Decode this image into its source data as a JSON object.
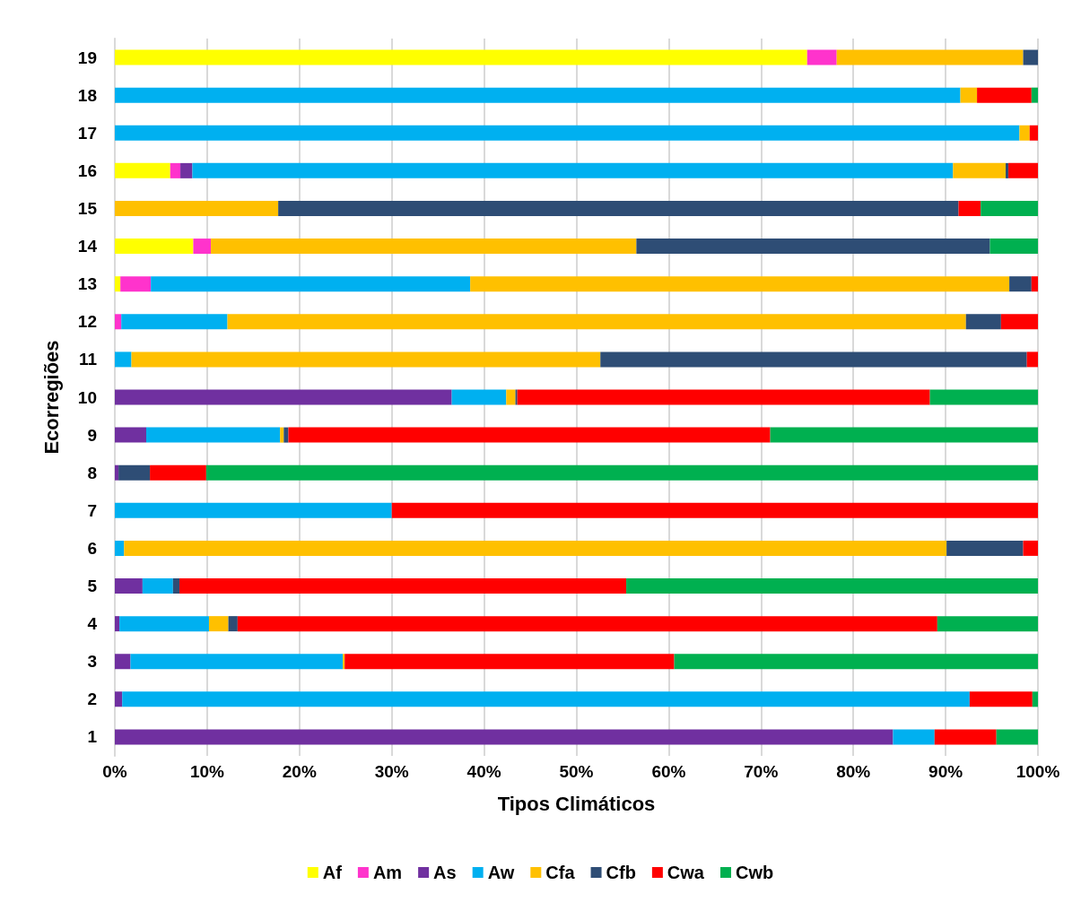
{
  "chart_data": {
    "type": "bar",
    "orientation": "horizontal",
    "stacked": true,
    "categories": [
      "19",
      "18",
      "17",
      "16",
      "15",
      "14",
      "13",
      "12",
      "11",
      "10",
      "9",
      "8",
      "7",
      "6",
      "5",
      "4",
      "3",
      "2",
      "1"
    ],
    "series": [
      {
        "name": "Af",
        "color": "#ffff00",
        "values": [
          75.0,
          0,
          0,
          6.0,
          0,
          8.5,
          0.6,
          0,
          0,
          0,
          0,
          0,
          0,
          0,
          0,
          0,
          0,
          0,
          0
        ]
      },
      {
        "name": "Am",
        "color": "#ff33cc",
        "values": [
          3.2,
          0,
          0,
          1.1,
          0,
          1.9,
          3.3,
          0.7,
          0,
          0,
          0,
          0,
          0,
          0,
          0,
          0,
          0,
          0,
          0
        ]
      },
      {
        "name": "As",
        "color": "#7030a0",
        "values": [
          0,
          0,
          0,
          1.3,
          0,
          0,
          0,
          0,
          0,
          36.5,
          3.4,
          0.4,
          0,
          0,
          3.0,
          0.5,
          1.7,
          0.8,
          84.3
        ]
      },
      {
        "name": "Aw",
        "color": "#00b0f0",
        "values": [
          0,
          91.6,
          98.0,
          82.4,
          0,
          0,
          34.6,
          11.5,
          1.8,
          5.9,
          14.5,
          0,
          30.0,
          1.0,
          3.3,
          9.7,
          23.0,
          91.8,
          4.5
        ]
      },
      {
        "name": "Cfa",
        "color": "#ffc000",
        "values": [
          20.2,
          1.8,
          1.1,
          5.7,
          17.7,
          46.1,
          58.4,
          80.0,
          50.8,
          1.0,
          0.4,
          0,
          0,
          89.1,
          0,
          2.1,
          0.2,
          0,
          0
        ]
      },
      {
        "name": "Cfb",
        "color": "#2e4d75",
        "values": [
          1.6,
          0,
          0,
          0.3,
          73.7,
          38.3,
          2.4,
          3.8,
          46.2,
          0.2,
          0.5,
          3.4,
          0,
          8.3,
          0.7,
          1.0,
          0,
          0,
          0
        ]
      },
      {
        "name": "Cwa",
        "color": "#ff0000",
        "values": [
          0,
          5.9,
          0.9,
          3.2,
          2.4,
          0,
          0.7,
          4.0,
          1.2,
          44.7,
          52.2,
          6.1,
          70.0,
          1.6,
          48.4,
          75.8,
          35.7,
          6.8,
          6.7
        ]
      },
      {
        "name": "Cwb",
        "color": "#00b050",
        "values": [
          0,
          0.7,
          0,
          0,
          6.2,
          5.2,
          0,
          0,
          0,
          11.7,
          29.0,
          90.1,
          0,
          0,
          44.6,
          10.9,
          39.4,
          0.6,
          4.5
        ]
      }
    ],
    "xlim": [
      0,
      100
    ],
    "xticks": [
      {
        "value": 0,
        "label": "0%"
      },
      {
        "value": 10,
        "label": "10%"
      },
      {
        "value": 20,
        "label": "20%"
      },
      {
        "value": 30,
        "label": "30%"
      },
      {
        "value": 40,
        "label": "40%"
      },
      {
        "value": 50,
        "label": "50%"
      },
      {
        "value": 60,
        "label": "60%"
      },
      {
        "value": 70,
        "label": "70%"
      },
      {
        "value": 80,
        "label": "80%"
      },
      {
        "value": 90,
        "label": "90%"
      },
      {
        "value": 100,
        "label": "100%"
      }
    ],
    "xlabel": "Tipos Climáticos",
    "ylabel": "Ecorregiões",
    "grid": "x",
    "legend": "bottom"
  }
}
